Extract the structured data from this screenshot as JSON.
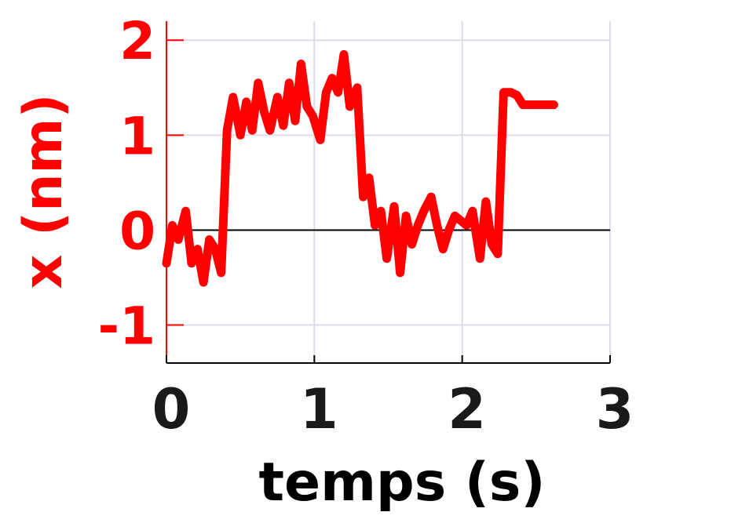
{
  "chart_data": {
    "type": "line",
    "title": "",
    "xlabel": "temps (s)",
    "ylabel": "x (nm)",
    "xlim": [
      0,
      3
    ],
    "ylim": [
      -1.4,
      2.2
    ],
    "x_ticks": [
      "0",
      "1",
      "2",
      "3"
    ],
    "y_ticks": [
      "-1",
      "0",
      "1",
      "2"
    ],
    "x_tick_values": [
      0,
      1,
      2,
      3
    ],
    "y_tick_values": [
      -1,
      0,
      1,
      2
    ],
    "grid": true,
    "zero_line": true,
    "colors": {
      "series": "#ff0000",
      "y_axis_text": "#ff0000",
      "x_axis_text": "#1a1a1a",
      "grid": "#dcdcea",
      "axis": "#000000"
    },
    "series": [
      {
        "name": "",
        "x": [
          0.0,
          0.04,
          0.08,
          0.13,
          0.17,
          0.21,
          0.25,
          0.29,
          0.33,
          0.37,
          0.41,
          0.45,
          0.5,
          0.54,
          0.58,
          0.62,
          0.66,
          0.7,
          0.75,
          0.79,
          0.83,
          0.87,
          0.91,
          0.95,
          0.99,
          1.04,
          1.08,
          1.12,
          1.16,
          1.2,
          1.24,
          1.29,
          1.33,
          1.37,
          1.41,
          1.45,
          1.49,
          1.54,
          1.58,
          1.62,
          1.66,
          1.7,
          1.74,
          1.79,
          1.83,
          1.87,
          1.91,
          1.95,
          1.99,
          2.03,
          2.07,
          2.12,
          2.16,
          2.2,
          2.24,
          2.28,
          2.33,
          2.37,
          2.41,
          2.45,
          2.5,
          2.54,
          2.58,
          2.62
        ],
        "y": [
          -0.35,
          0.05,
          -0.1,
          0.2,
          -0.35,
          -0.2,
          -0.55,
          -0.1,
          -0.2,
          -0.45,
          1.05,
          1.4,
          1.0,
          1.35,
          1.05,
          1.55,
          1.25,
          1.05,
          1.4,
          1.1,
          1.55,
          1.15,
          1.75,
          1.3,
          1.2,
          0.95,
          1.45,
          1.6,
          1.45,
          1.85,
          1.3,
          1.5,
          0.35,
          0.55,
          0.05,
          0.2,
          -0.3,
          0.25,
          -0.45,
          0.15,
          -0.15,
          0.05,
          0.2,
          0.35,
          0.05,
          -0.2,
          0.0,
          0.15,
          0.1,
          0.05,
          0.2,
          -0.3,
          0.3,
          -0.15,
          -0.25,
          1.45,
          1.45,
          1.42,
          1.32,
          1.32,
          1.32,
          1.32,
          1.32,
          1.32
        ]
      }
    ]
  }
}
